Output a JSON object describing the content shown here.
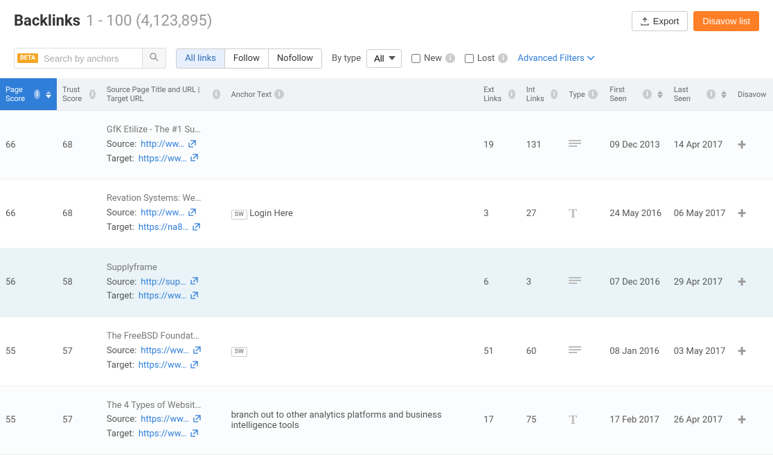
{
  "header": {
    "title": "Backlinks",
    "range": "1 - 100 (4,123,895)",
    "export_label": "Export",
    "disavow_label": "Disavow list"
  },
  "filters": {
    "search_placeholder": "Search by anchors",
    "beta_label": "BETA",
    "tabs": {
      "all": "All links",
      "follow": "Follow",
      "nofollow": "Nofollow"
    },
    "bytype_label": "By type",
    "bytype_value": "All",
    "new_label": "New",
    "lost_label": "Lost",
    "advanced_label": "Advanced Filters"
  },
  "columns": {
    "page_score": "Page Score",
    "trust_score": "Trust Score",
    "source": "Source Page Title and URL | Target URL",
    "anchor": "Anchor Text",
    "ext_links": "Ext Links",
    "int_links": "Int Links",
    "type": "Type",
    "first_seen": "First Seen",
    "last_seen": "Last Seen",
    "disavow": "Disavow"
  },
  "rows": [
    {
      "ps": "66",
      "ts": "68",
      "title": "GfK Etilize - The #1 Su…",
      "source": "http://ww…",
      "target": "https://ww…",
      "sw": false,
      "anchor": "",
      "ext": "19",
      "int": "131",
      "type": "text",
      "fs": "09 Dec 2013",
      "ls": "14 Apr 2017"
    },
    {
      "ps": "66",
      "ts": "68",
      "title": "Revation Systems: We…",
      "source": "http://ww…",
      "target": "https://na8…",
      "sw": true,
      "anchor": "Login Here",
      "ext": "3",
      "int": "27",
      "type": "T",
      "fs": "24 May 2016",
      "ls": "06 May 2017"
    },
    {
      "ps": "56",
      "ts": "58",
      "title": "Supplyframe",
      "source": "http://sup…",
      "target": "https://ww…",
      "sw": false,
      "anchor": "",
      "ext": "6",
      "int": "3",
      "type": "text",
      "fs": "07 Dec 2016",
      "ls": "29 Apr 2017",
      "hl": true
    },
    {
      "ps": "55",
      "ts": "57",
      "title": "The FreeBSD Foundat…",
      "source": "https://ww…",
      "target": "https://ww…",
      "sw": true,
      "anchor": "",
      "ext": "51",
      "int": "60",
      "type": "text",
      "fs": "08 Jan 2016",
      "ls": "03 May 2017"
    },
    {
      "ps": "55",
      "ts": "57",
      "title": "The 4 Types of Websit…",
      "source": "https://ww…",
      "target": "https://ww…",
      "sw": false,
      "anchor": "branch out to other analytics platforms and business intelligence tools",
      "ext": "17",
      "int": "75",
      "type": "T",
      "fs": "17 Feb 2017",
      "ls": "26 Apr 2017"
    }
  ],
  "labels": {
    "source_prefix": "Source:",
    "target_prefix": "Target:"
  },
  "colors": {
    "accent": "#2f7ed8",
    "orange": "#ff7f27"
  }
}
